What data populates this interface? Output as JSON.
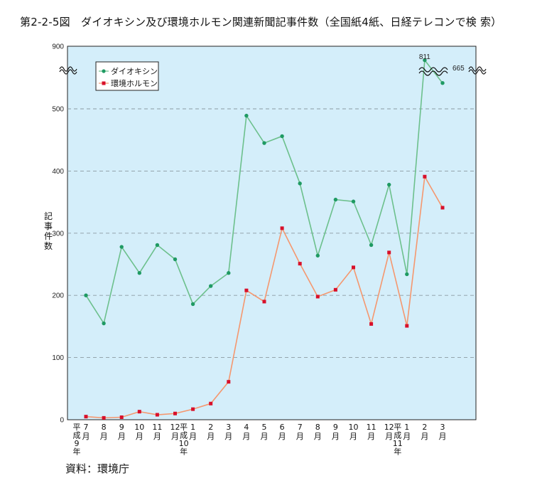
{
  "title": "第2-2-5図　ダイオキシン及び環境ホルモン関連新聞記事件数（全国紙4紙、日経テレコンで検 索）",
  "source": "資料：環境庁",
  "chart_data": {
    "type": "line",
    "ylabel": "記事件数",
    "ylim": [
      0,
      900
    ],
    "yticks": [
      0,
      100,
      200,
      300,
      400,
      500,
      900
    ],
    "axis_break_between": [
      500,
      900
    ],
    "grid": true,
    "legend_position": "top-left",
    "categories": [
      "7月",
      "8月",
      "9月",
      "10月",
      "11月",
      "12月",
      "1月",
      "2月",
      "3月",
      "4月",
      "5月",
      "6月",
      "7月",
      "8月",
      "9月",
      "10月",
      "11月",
      "12月",
      "1月",
      "2月",
      "3月"
    ],
    "era_labels": [
      {
        "text": "平成9年",
        "before_index": 0
      },
      {
        "text": "平成10年",
        "before_index": 6
      },
      {
        "text": "平成11年",
        "before_index": 18
      }
    ],
    "series": [
      {
        "name": "ダイオキシン",
        "color": "#6cc08c",
        "marker": "circle",
        "values": [
          200,
          155,
          278,
          236,
          281,
          258,
          186,
          215,
          236,
          489,
          445,
          456,
          380,
          264,
          354,
          351,
          281,
          378,
          234,
          811,
          665
        ]
      },
      {
        "name": "環境ホルモン",
        "color": "#f5976e",
        "marker": "square",
        "values": [
          5,
          3,
          4,
          13,
          8,
          10,
          17,
          26,
          61,
          208,
          190,
          308,
          251,
          198,
          209,
          245,
          154,
          269,
          151,
          391,
          341
        ]
      }
    ],
    "annotations": [
      "811",
      "665"
    ]
  }
}
